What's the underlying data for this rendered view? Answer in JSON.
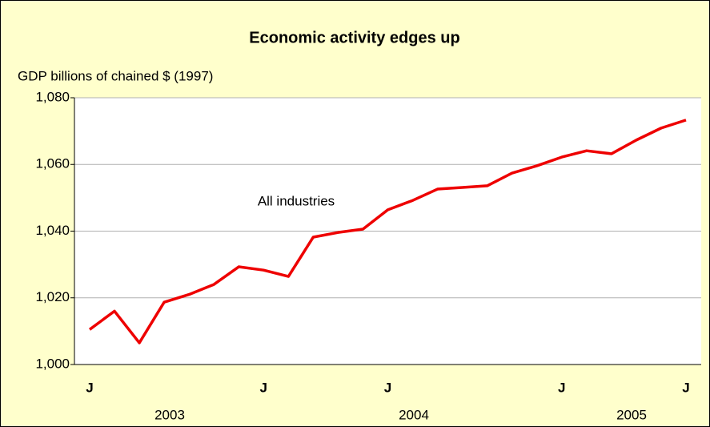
{
  "chart_data": {
    "type": "line",
    "title": "Economic activity edges up",
    "y_label": "GDP billions of chained $ (1997)",
    "annotation": "All industries",
    "categories": [
      "J",
      null,
      null,
      null,
      null,
      null,
      null,
      "J",
      null,
      null,
      null,
      null,
      "J",
      null,
      null,
      null,
      null,
      null,
      null,
      "J",
      null,
      null,
      null,
      null,
      "J"
    ],
    "x_groups": [
      "2003",
      "2004",
      "2005"
    ],
    "series": [
      {
        "name": "All industries",
        "color": "#ee0000",
        "values": [
          1010.5,
          1016,
          1006.5,
          1018.7,
          1021,
          1024,
          1029.3,
          1028.3,
          1026.4,
          1038.2,
          1039.6,
          1040.6,
          1046.4,
          1049.2,
          1052.6,
          1053.1,
          1053.6,
          1057.4,
          1059.6,
          1062.2,
          1064.1,
          1063.2,
          1067.3,
          1070.9,
          1073.3
        ]
      }
    ],
    "ylim": [
      1000,
      1080
    ],
    "yticks": [
      {
        "value": 1000,
        "label": "1,000"
      },
      {
        "value": 1020,
        "label": "1,020"
      },
      {
        "value": 1040,
        "label": "1,040"
      },
      {
        "value": 1060,
        "label": "1,060"
      },
      {
        "value": 1080,
        "label": "1,080"
      }
    ],
    "grid": true
  }
}
